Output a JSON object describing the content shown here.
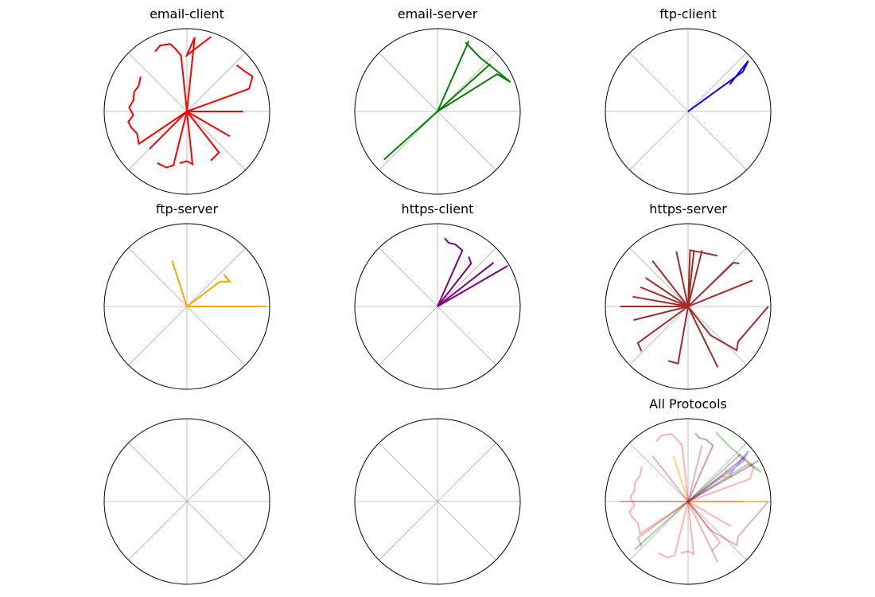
{
  "chart_data": [
    {
      "type": "radar",
      "title": "email-client",
      "grid": true,
      "radial_ticks": "none",
      "series": [
        {
          "color": "#ff0000",
          "r": 1.0,
          "segments": [
            [
              [
                72,
                0.95
              ],
              [
                90,
                0.68
              ],
              [
                84,
                0.9
              ],
              [
                0,
                0
              ]
            ],
            [
              [
                118,
                0.82
              ],
              [
                112,
                0.86
              ],
              [
                104,
                0.84
              ],
              [
                100,
                0.76
              ],
              [
                96,
                0.68
              ],
              [
                0,
                0
              ]
            ],
            [
              [
                143,
                0.7
              ],
              [
                152,
                0.66
              ],
              [
                160,
                0.68
              ],
              [
                168,
                0.66
              ],
              [
                176,
                0.7
              ],
              [
                184,
                0.65
              ],
              [
                190,
                0.72
              ],
              [
                196,
                0.7
              ],
              [
                204,
                0.66
              ],
              [
                214,
                0.7
              ],
              [
                0,
                0
              ]
            ],
            [
              [
                240,
                0.72
              ],
              [
                250,
                0.72
              ],
              [
                256,
                0.67
              ],
              [
                0,
                0
              ]
            ],
            [
              [
                225,
                0.64
              ],
              [
                0,
                0
              ]
            ],
            [
              [
                262,
                0.63
              ],
              [
                270,
                0.6
              ],
              [
                276,
                0.64
              ],
              [
                0,
                0
              ]
            ],
            [
              [
                296,
                0.66
              ],
              [
                308,
                0.63
              ],
              [
                0,
                0
              ]
            ],
            [
              [
                330,
                0.6
              ],
              [
                0,
                0
              ]
            ],
            [
              [
                0,
                0.68
              ],
              [
                0,
                0
              ]
            ],
            [
              [
                43,
                0.82
              ],
              [
                35,
                0.85
              ],
              [
                28,
                0.9
              ],
              [
                20,
                0.8
              ],
              [
                0,
                0
              ]
            ]
          ]
        }
      ]
    },
    {
      "type": "radar",
      "title": "email-server",
      "grid": true,
      "radial_ticks": "none",
      "series": [
        {
          "color": "#008000",
          "r": 1.0,
          "segments": [
            [
              [
                222,
                0.87
              ],
              [
                42,
                0.86
              ],
              [
                0,
                0
              ]
            ],
            [
              [
                68,
                0.9
              ],
              [
                52,
                0.83
              ],
              [
                36,
                0.86
              ],
              [
                22,
                0.95
              ],
              [
                32,
                0.85
              ],
              [
                0,
                0
              ]
            ],
            [
              [
                66,
                0.93
              ],
              [
                0,
                0
              ]
            ]
          ]
        }
      ]
    },
    {
      "type": "radar",
      "title": "ftp-client",
      "grid": true,
      "radial_ticks": "none",
      "series": [
        {
          "color": "#0000ff",
          "r": 1.0,
          "segments": [
            [
              [
                0,
                0
              ],
              [
                36,
                0.82
              ],
              [
                40,
                0.95
              ],
              [
                33,
                0.6
              ]
            ]
          ]
        }
      ]
    },
    {
      "type": "radar",
      "title": "ftp-server",
      "grid": true,
      "radial_ticks": "none",
      "series": [
        {
          "color": "#ffa500",
          "r": 1.0,
          "segments": [
            [
              [
                108,
                0.58
              ],
              [
                0,
                0
              ]
            ],
            [
              [
                41,
                0.59
              ],
              [
                30,
                0.6
              ],
              [
                37,
                0.5
              ],
              [
                0,
                0
              ]
            ],
            [
              [
                0,
                0.96
              ],
              [
                0,
                0
              ]
            ]
          ]
        }
      ]
    },
    {
      "type": "radar",
      "title": "https-client",
      "grid": true,
      "radial_ticks": "none",
      "series": [
        {
          "color": "#800080",
          "r": 1.0,
          "segments": [
            [
              [
                84,
                0.83
              ],
              [
                80,
                0.78
              ],
              [
                74,
                0.78
              ],
              [
                66,
                0.74
              ],
              [
                0,
                0
              ]
            ],
            [
              [
                58,
                0.71
              ],
              [
                52,
                0.66
              ],
              [
                0,
                0
              ]
            ],
            [
              [
                38,
                0.86
              ],
              [
                0,
                0
              ]
            ],
            [
              [
                30,
                0.98
              ],
              [
                0,
                0
              ]
            ]
          ]
        }
      ]
    },
    {
      "type": "radar",
      "title": "https-server",
      "grid": true,
      "radial_ticks": "none",
      "series": [
        {
          "color": "#a52a2a",
          "r": 1.0,
          "segments": [
            [
              [
                84,
                0.68
              ],
              [
                0,
                0
              ]
            ],
            [
              [
                102,
                0.68
              ],
              [
                0,
                0
              ]
            ],
            [
              [
                128,
                0.7
              ],
              [
                0,
                0
              ]
            ],
            [
              [
                146,
                0.62
              ],
              [
                0,
                0
              ]
            ],
            [
              [
                158,
                0.62
              ],
              [
                0,
                0
              ]
            ],
            [
              [
                170,
                0.68
              ],
              [
                0,
                0
              ]
            ],
            [
              [
                180,
                0.82
              ],
              [
                0,
                0
              ]
            ],
            [
              [
                194,
                0.68
              ],
              [
                0,
                0
              ]
            ],
            [
              [
                224,
                0.78
              ],
              [
                216,
                0.75
              ],
              [
                0,
                0
              ]
            ],
            [
              [
                250,
                0.7
              ],
              [
                260,
                0.7
              ],
              [
                0,
                0
              ]
            ],
            [
              [
                296,
                0.82
              ],
              [
                0,
                0
              ]
            ],
            [
              [
                0,
                0.97
              ],
              [
                325,
                0.74
              ],
              [
                318,
                0.79
              ],
              [
                308,
                0.44
              ],
              [
                0,
                0
              ]
            ],
            [
              [
                22,
                0.84
              ],
              [
                0,
                0
              ]
            ],
            [
              [
                40,
                0.81
              ],
              [
                44,
                0.76
              ],
              [
                0,
                0
              ]
            ],
            [
              [
                60,
                0.71
              ],
              [
                88,
                0.68
              ],
              [
                0,
                0
              ]
            ],
            [
              [
                76,
                0.7
              ],
              [
                0,
                0
              ]
            ]
          ]
        }
      ]
    },
    {
      "type": "radar",
      "title": "",
      "grid": true,
      "radial_ticks": "none",
      "series": []
    },
    {
      "type": "radar",
      "title": "",
      "grid": true,
      "radial_ticks": "none",
      "series": []
    },
    {
      "type": "radar",
      "title": "All Protocols",
      "grid": true,
      "radial_ticks": "none",
      "series": [
        {
          "color": "#ff0000",
          "opacity": 0.3,
          "segments": [
            [
              [
                118,
                0.82
              ],
              [
                112,
                0.86
              ],
              [
                104,
                0.84
              ],
              [
                100,
                0.76
              ],
              [
                96,
                0.68
              ],
              [
                0,
                0
              ]
            ],
            [
              [
                143,
                0.7
              ],
              [
                152,
                0.66
              ],
              [
                160,
                0.68
              ],
              [
                168,
                0.66
              ],
              [
                176,
                0.7
              ],
              [
                184,
                0.65
              ],
              [
                190,
                0.72
              ],
              [
                196,
                0.7
              ],
              [
                204,
                0.66
              ],
              [
                214,
                0.7
              ],
              [
                0,
                0
              ]
            ],
            [
              [
                240,
                0.72
              ],
              [
                250,
                0.72
              ],
              [
                256,
                0.67
              ],
              [
                0,
                0
              ]
            ],
            [
              [
                262,
                0.63
              ],
              [
                270,
                0.6
              ],
              [
                276,
                0.64
              ],
              [
                0,
                0
              ]
            ],
            [
              [
                296,
                0.66
              ],
              [
                308,
                0.63
              ],
              [
                0,
                0
              ]
            ],
            [
              [
                330,
                0.6
              ],
              [
                0,
                0
              ]
            ],
            [
              [
                0,
                0.68
              ],
              [
                0,
                0
              ]
            ],
            [
              [
                43,
                0.82
              ],
              [
                35,
                0.85
              ],
              [
                28,
                0.9
              ],
              [
                20,
                0.8
              ],
              [
                0,
                0
              ]
            ]
          ]
        },
        {
          "color": "#008000",
          "opacity": 0.35,
          "segments": [
            [
              [
                222,
                0.87
              ],
              [
                42,
                0.86
              ],
              [
                0,
                0
              ]
            ],
            [
              [
                68,
                0.9
              ],
              [
                52,
                0.83
              ],
              [
                36,
                0.86
              ],
              [
                22,
                0.95
              ],
              [
                32,
                0.85
              ],
              [
                0,
                0
              ]
            ]
          ]
        },
        {
          "color": "#0000ff",
          "opacity": 0.35,
          "segments": [
            [
              [
                0,
                0
              ],
              [
                36,
                0.82
              ],
              [
                40,
                0.95
              ],
              [
                33,
                0.6
              ]
            ]
          ]
        },
        {
          "color": "#ffa500",
          "opacity": 0.5,
          "segments": [
            [
              [
                108,
                0.58
              ],
              [
                0,
                0
              ]
            ],
            [
              [
                41,
                0.59
              ],
              [
                30,
                0.6
              ],
              [
                37,
                0.5
              ],
              [
                0,
                0
              ]
            ],
            [
              [
                0,
                0.96
              ],
              [
                0,
                0
              ]
            ]
          ]
        },
        {
          "color": "#800080",
          "opacity": 0.4,
          "segments": [
            [
              [
                84,
                0.83
              ],
              [
                80,
                0.78
              ],
              [
                74,
                0.78
              ],
              [
                66,
                0.74
              ],
              [
                0,
                0
              ]
            ],
            [
              [
                38,
                0.86
              ],
              [
                0,
                0
              ]
            ],
            [
              [
                30,
                0.98
              ],
              [
                0,
                0
              ]
            ]
          ]
        },
        {
          "color": "#a52a2a",
          "opacity": 0.35,
          "segments": [
            [
              [
                128,
                0.7
              ],
              [
                0,
                0
              ]
            ],
            [
              [
                180,
                0.82
              ],
              [
                0,
                0
              ]
            ],
            [
              [
                224,
                0.78
              ],
              [
                216,
                0.75
              ],
              [
                0,
                0
              ]
            ],
            [
              [
                296,
                0.82
              ],
              [
                0,
                0
              ]
            ],
            [
              [
                0,
                0.97
              ],
              [
                325,
                0.74
              ],
              [
                318,
                0.79
              ],
              [
                308,
                0.44
              ],
              [
                0,
                0
              ]
            ],
            [
              [
                76,
                0.7
              ],
              [
                0,
                0
              ]
            ]
          ]
        }
      ]
    }
  ]
}
